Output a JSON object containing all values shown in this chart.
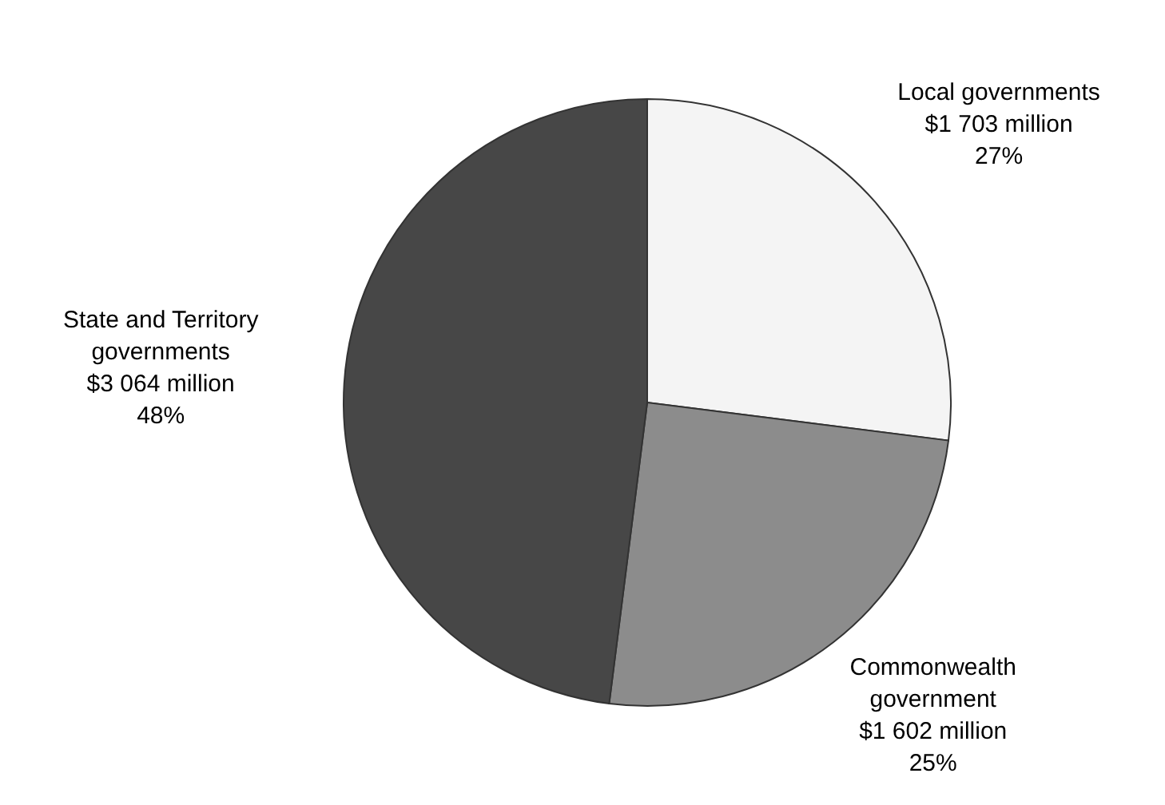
{
  "chart_data": {
    "type": "pie",
    "categories": [
      "Local governments",
      "Commonwealth government",
      "State and Territory governments"
    ],
    "values": [
      27,
      25,
      48
    ],
    "colors": [
      "#f4f4f4",
      "#8c8c8c",
      "#474747"
    ],
    "value_labels": [
      "$1 703 million\n27%",
      "$1 602 million\n25%",
      "$3 064 million\n48%"
    ],
    "legend": false
  }
}
